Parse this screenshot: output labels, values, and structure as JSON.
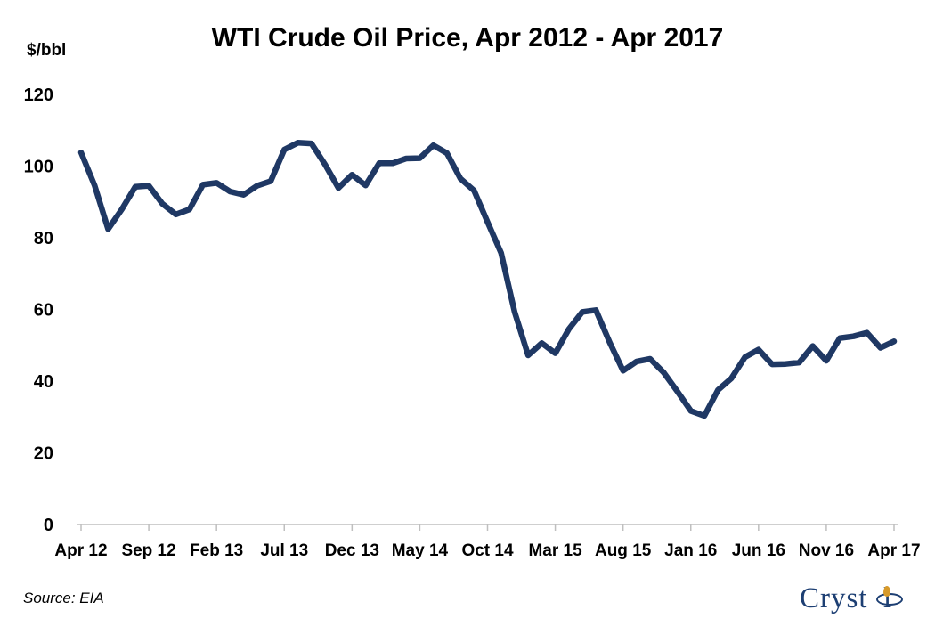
{
  "chart_data": {
    "type": "line",
    "title": "WTI Crude Oil Price, Apr 2012 - Apr 2017",
    "ylabel": "$/bbl",
    "ylim": [
      0,
      120
    ],
    "yticks": [
      0,
      20,
      40,
      60,
      80,
      100,
      120
    ],
    "xtick_labels": [
      "Apr 12",
      "Sep 12",
      "Feb 13",
      "Jul 13",
      "Dec 13",
      "May 14",
      "Oct 14",
      "Mar 15",
      "Aug 15",
      "Jan 16",
      "Jun 16",
      "Nov 16",
      "Apr 17"
    ],
    "x": [
      "Apr 12",
      "May 12",
      "Jun 12",
      "Jul 12",
      "Aug 12",
      "Sep 12",
      "Oct 12",
      "Nov 12",
      "Dec 12",
      "Jan 13",
      "Feb 13",
      "Mar 13",
      "Apr 13",
      "May 13",
      "Jun 13",
      "Jul 13",
      "Aug 13",
      "Sep 13",
      "Oct 13",
      "Nov 13",
      "Dec 13",
      "Jan 14",
      "Feb 14",
      "Mar 14",
      "Apr 14",
      "May 14",
      "Jun 14",
      "Jul 14",
      "Aug 14",
      "Sep 14",
      "Oct 14",
      "Nov 14",
      "Dec 14",
      "Jan 15",
      "Feb 15",
      "Mar 15",
      "Apr 15",
      "May 15",
      "Jun 15",
      "Jul 15",
      "Aug 15",
      "Sep 15",
      "Oct 15",
      "Nov 15",
      "Dec 15",
      "Jan 16",
      "Feb 16",
      "Mar 16",
      "Apr 16",
      "May 16",
      "Jun 16",
      "Jul 16",
      "Aug 16",
      "Sep 16",
      "Oct 16",
      "Nov 16",
      "Dec 16",
      "Jan 17",
      "Feb 17",
      "Mar 17",
      "Apr 17"
    ],
    "series": [
      {
        "color": "#1f3864",
        "values": [
          103.8,
          94.6,
          82.4,
          87.9,
          94.2,
          94.5,
          89.5,
          86.5,
          87.9,
          94.8,
          95.3,
          92.9,
          92.0,
          94.5,
          95.8,
          104.6,
          106.5,
          106.3,
          100.5,
          93.9,
          97.6,
          94.6,
          100.8,
          100.8,
          102.1,
          102.2,
          105.8,
          103.6,
          96.5,
          93.2,
          84.4,
          75.8,
          59.3,
          47.2,
          50.6,
          47.8,
          54.5,
          59.3,
          59.8,
          50.9,
          42.9,
          45.5,
          46.2,
          42.4,
          37.2,
          31.7,
          30.3,
          37.5,
          40.8,
          46.7,
          48.8,
          44.7,
          44.8,
          45.2,
          49.8,
          45.7,
          52.0,
          52.5,
          53.5,
          49.3,
          51.1
        ]
      }
    ],
    "grid": false,
    "legend": false
  },
  "footer": {
    "source": "Source: EIA",
    "logo_text": "Crystol"
  }
}
